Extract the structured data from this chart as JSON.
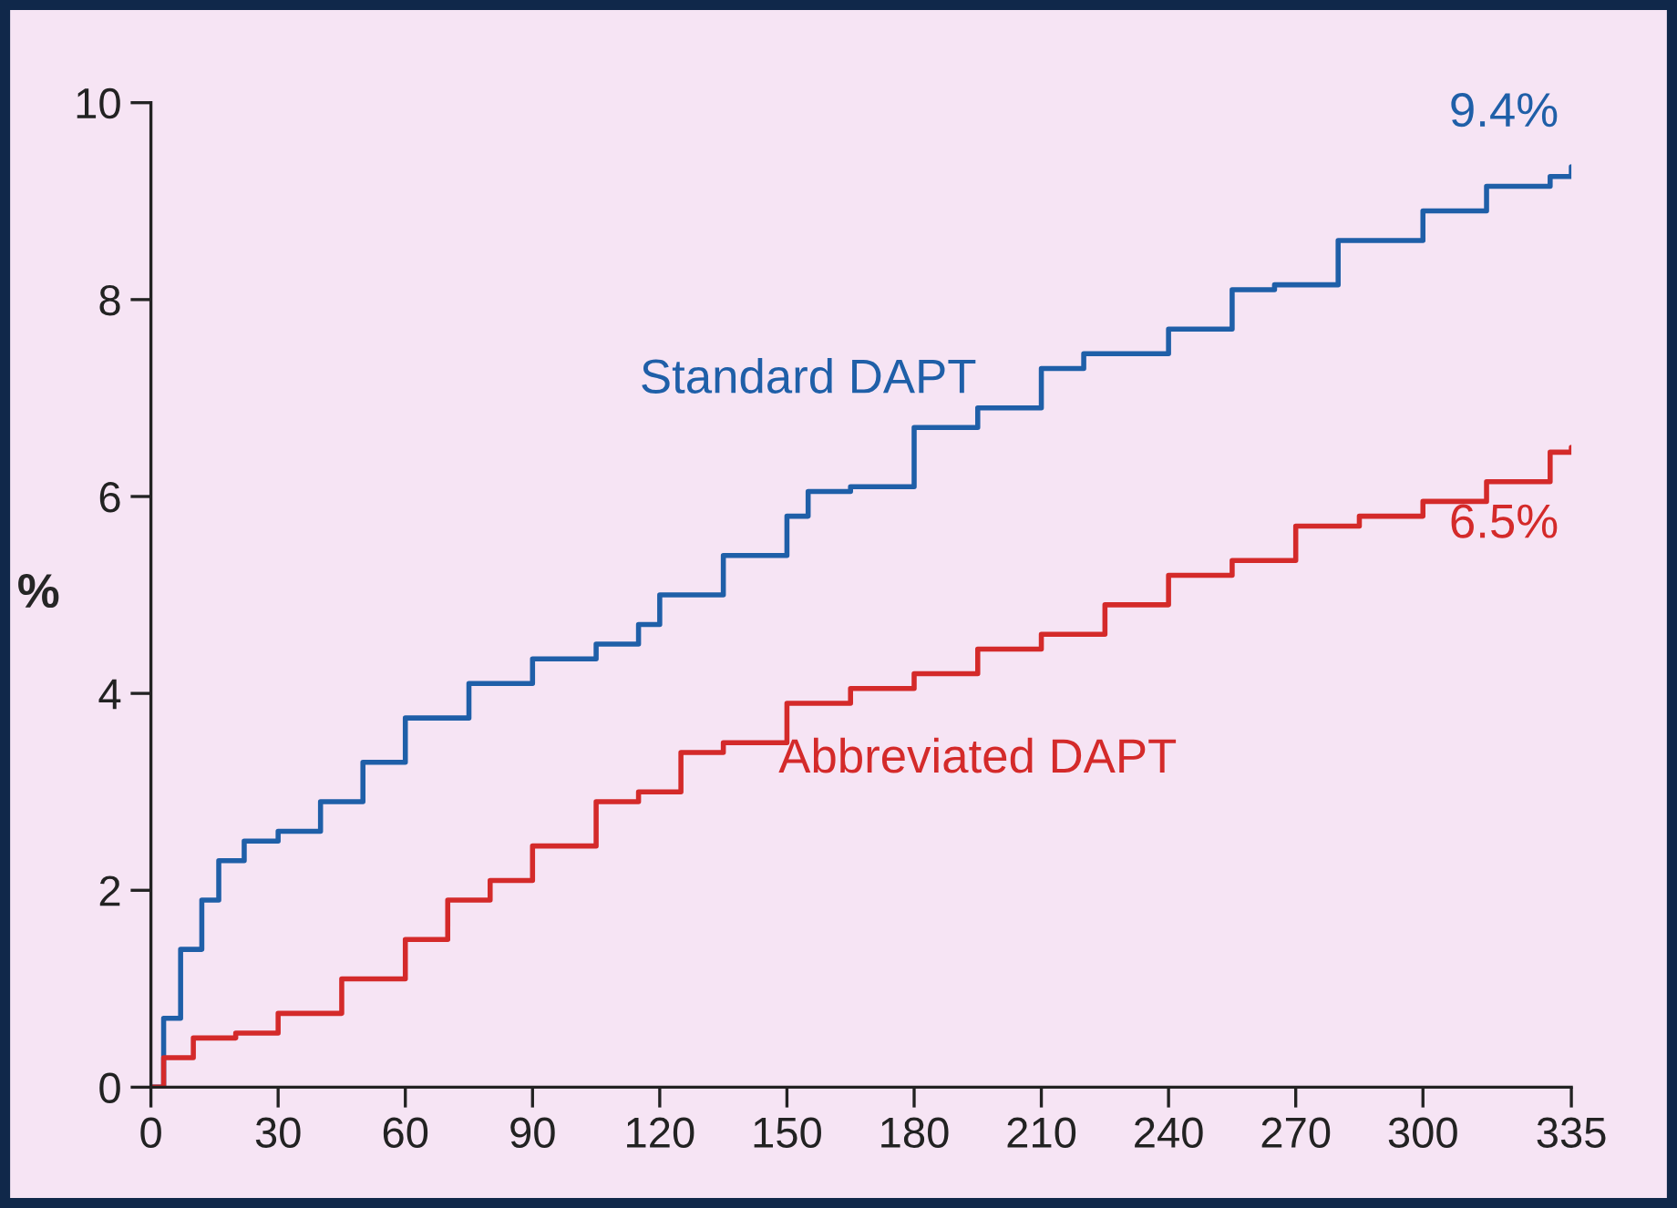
{
  "chart_data": {
    "type": "step",
    "ylabel": "%",
    "xlim": [
      0,
      335
    ],
    "xticks": [
      0,
      30,
      60,
      90,
      120,
      150,
      180,
      210,
      240,
      270,
      300,
      335
    ],
    "ylim": [
      0,
      10
    ],
    "yticks": [
      0,
      2,
      4,
      6,
      8,
      10
    ],
    "grid": false,
    "legend": false,
    "marker": "none",
    "line_style": "solid",
    "series": [
      {
        "name": "Standard DAPT",
        "color": "#1f5fa8",
        "x": [
          0,
          3,
          7,
          12,
          16,
          22,
          30,
          40,
          50,
          60,
          75,
          90,
          105,
          115,
          120,
          135,
          150,
          155,
          165,
          180,
          195,
          210,
          220,
          235,
          240,
          255,
          265,
          280,
          300,
          315,
          330,
          335
        ],
        "values": [
          0,
          0.7,
          1.4,
          1.9,
          2.3,
          2.5,
          2.6,
          2.9,
          3.3,
          3.75,
          4.1,
          4.35,
          4.5,
          4.7,
          5.0,
          5.4,
          5.8,
          6.05,
          6.1,
          6.7,
          6.9,
          7.3,
          7.45,
          7.45,
          7.7,
          8.1,
          8.15,
          8.6,
          8.9,
          9.15,
          9.25,
          9.35
        ]
      },
      {
        "name": "Abbreviated DAPT",
        "color": "#d42a2a",
        "x": [
          0,
          3,
          10,
          20,
          30,
          45,
          60,
          70,
          80,
          90,
          105,
          115,
          125,
          135,
          150,
          165,
          180,
          195,
          210,
          225,
          240,
          255,
          270,
          285,
          300,
          315,
          330,
          335
        ],
        "values": [
          0,
          0.3,
          0.5,
          0.55,
          0.75,
          1.1,
          1.5,
          1.9,
          2.1,
          2.45,
          2.9,
          3.0,
          3.4,
          3.5,
          3.9,
          4.05,
          4.2,
          4.45,
          4.6,
          4.9,
          5.2,
          5.35,
          5.7,
          5.8,
          5.95,
          6.15,
          6.45,
          6.5
        ]
      }
    ],
    "annotations": [
      {
        "text": "9.4%",
        "x": 335,
        "y": 9.4
      },
      {
        "text": "6.5%",
        "x": 335,
        "y": 6.5
      }
    ]
  }
}
